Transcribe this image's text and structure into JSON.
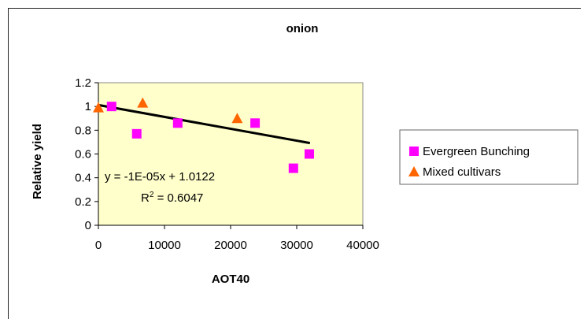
{
  "chart_data": {
    "type": "scatter",
    "title": "onion",
    "xlabel": "AOT40",
    "ylabel": "Relative yield",
    "xlim": [
      0,
      40000
    ],
    "ylim": [
      0,
      1.2
    ],
    "x_ticks": [
      0,
      10000,
      20000,
      30000,
      40000
    ],
    "y_ticks": [
      0,
      0.2,
      0.4,
      0.6,
      0.8,
      1,
      1.2
    ],
    "plot_background": "#ffffcc",
    "grid": false,
    "legend_position": "right",
    "series": [
      {
        "name": "Evergreen Bunching",
        "marker": "square",
        "color": "#ff00ff",
        "points": [
          [
            2000,
            1.0
          ],
          [
            5800,
            0.77
          ],
          [
            12000,
            0.86
          ],
          [
            23700,
            0.86
          ],
          [
            29500,
            0.48
          ],
          [
            31900,
            0.6
          ]
        ]
      },
      {
        "name": "Mixed cultivars",
        "marker": "triangle",
        "color": "#ff6600",
        "points": [
          [
            0,
            0.99
          ],
          [
            6700,
            1.03
          ],
          [
            21000,
            0.9
          ]
        ]
      }
    ],
    "trendline": {
      "slope": -1e-05,
      "intercept": 1.0122,
      "x_range": [
        0,
        32000
      ],
      "color": "#000000",
      "equation": "y = -1E-05x + 1.0122",
      "r2_prefix": "R",
      "r2_sup": "2",
      "r2_value": " = 0.6047"
    }
  }
}
